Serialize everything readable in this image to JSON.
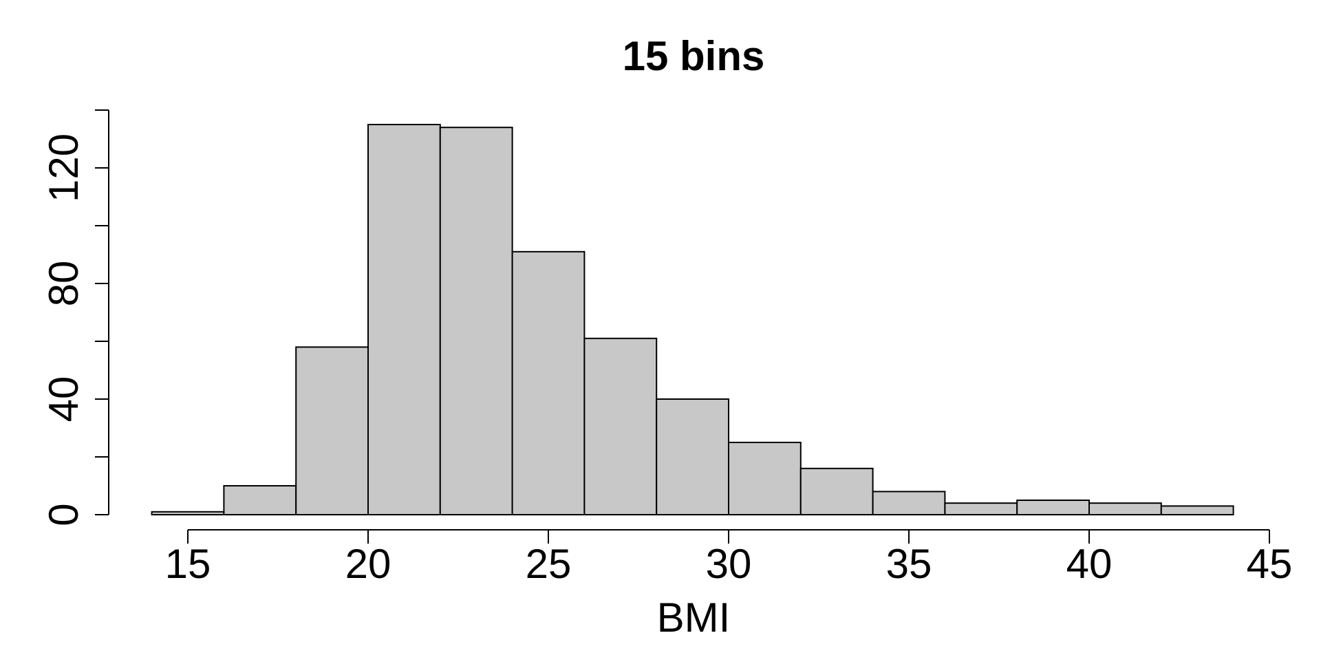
{
  "chart_data": {
    "type": "bar",
    "title": "15 bins",
    "xlabel": "BMI",
    "ylabel": "",
    "bin_edges": [
      14,
      16,
      18,
      20,
      22,
      24,
      26,
      28,
      30,
      32,
      34,
      36,
      38,
      40,
      42,
      44
    ],
    "values": [
      1,
      10,
      58,
      135,
      134,
      91,
      61,
      40,
      25,
      16,
      8,
      4,
      5,
      4,
      3
    ],
    "xlim": [
      14,
      44
    ],
    "ylim": [
      0,
      140
    ],
    "x_ticks": [
      15,
      20,
      25,
      30,
      35,
      40,
      45
    ],
    "y_ticks": [
      0,
      20,
      40,
      60,
      80,
      100,
      120,
      140
    ],
    "y_tick_labels": [
      "0",
      "",
      "40",
      "",
      "80",
      "",
      "120",
      ""
    ],
    "bar_fill": "#c8c8c8",
    "bar_stroke": "#000000",
    "grid": false,
    "legend": "none"
  }
}
